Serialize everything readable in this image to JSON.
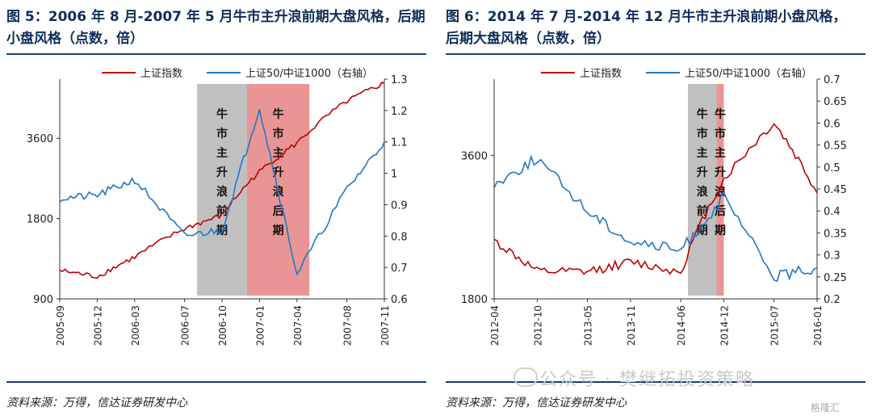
{
  "charts": [
    {
      "title": "图 5：2006 年 8 月-2007 年 5 月牛市主升浪前期大盘风格，后期\n小盘风格（点数，倍）",
      "source": "资料来源：万得，信达证券研发中心",
      "legend": [
        "上证指数",
        "上证50/中证1000（右轴）"
      ],
      "left_ticks": [
        "3600",
        "1800",
        "900"
      ],
      "right_ticks": [
        "1.3",
        "1.2",
        "1.1",
        "1",
        "0.9",
        "0.8",
        "0.7",
        "0.6"
      ],
      "x_ticks": [
        "2005-09",
        "2005-12",
        "2006-03",
        "2006-07",
        "2006-10",
        "2007-01",
        "2007-04",
        "2007-08",
        "2007-11"
      ],
      "band1_label": "牛市主升浪前期",
      "band2_label": "牛市主升浪后期"
    },
    {
      "title": "图 6：2014 年 7 月-2014 年 12 月牛市主升浪前期小盘风格，\n后期大盘风格（点数，倍）",
      "source": "资料来源：万得，信达证券研发中心",
      "legend": [
        "上证指数",
        "上证50/中证1000（右轴）"
      ],
      "left_ticks": [
        "3600",
        "1800"
      ],
      "right_ticks": [
        "0.7",
        "0.65",
        "0.6",
        "0.55",
        "0.5",
        "0.45",
        "0.4",
        "0.35",
        "0.3",
        "0.25",
        "0.2"
      ],
      "x_ticks": [
        "2012-04",
        "2012-10",
        "2013-05",
        "2013-11",
        "2014-06",
        "2014-12",
        "2015-07",
        "2016-01"
      ],
      "band1_label": "牛市主升浪前期",
      "band2_label": "牛市主升浪后期"
    }
  ],
  "watermark": "公众号 · 樊继拓投资策略",
  "corner_mark": "格隆汇",
  "colors": {
    "red": "#c00000",
    "blue": "#1f77c4",
    "gray": "#c0c0c0",
    "pink": "#e88a8a",
    "navy": "#0f2d5a"
  },
  "chart_data": [
    {
      "type": "line",
      "title": "图 5：2006 年 8 月-2007 年 5 月牛市主升浪前期大盘风格，后期小盘风格（点数，倍）",
      "x": [
        "2005-09",
        "2005-12",
        "2006-03",
        "2006-07",
        "2006-10",
        "2007-01",
        "2007-04",
        "2007-08",
        "2007-11"
      ],
      "series": [
        {
          "name": "上证指数",
          "axis": "left",
          "values": [
            1150,
            1090,
            1290,
            1650,
            1850,
            2700,
            3450,
            4950,
            5800
          ]
        },
        {
          "name": "上证50/中证1000（右轴）",
          "axis": "right",
          "values": [
            0.92,
            0.93,
            0.98,
            0.8,
            0.82,
            1.21,
            0.68,
            0.95,
            1.1
          ]
        }
      ],
      "ylim_left": [
        900,
        6000
      ],
      "ylim_right": [
        0.6,
        1.3
      ],
      "log_left": true,
      "shaded": [
        [
          "2006-08",
          "2006-12"
        ],
        [
          "2006-12",
          "2007-05"
        ]
      ]
    },
    {
      "type": "line",
      "title": "图 6：2014 年 7 月-2014 年 12 月牛市主升浪前期小盘风格，后期大盘风格（点数，倍）",
      "x": [
        "2012-04",
        "2012-10",
        "2013-05",
        "2013-11",
        "2014-06",
        "2014-12",
        "2015-07",
        "2016-01"
      ],
      "series": [
        {
          "name": "上证指数",
          "axis": "left",
          "values": [
            2380,
            2050,
            2050,
            2150,
            2050,
            3200,
            4200,
            3000
          ]
        },
        {
          "name": "上证50/中证1000（右轴）",
          "axis": "right",
          "values": [
            0.46,
            0.52,
            0.4,
            0.33,
            0.31,
            0.43,
            0.25,
            0.27
          ]
        }
      ],
      "ylim_left": [
        1800,
        5200
      ],
      "ylim_right": [
        0.2,
        0.7
      ],
      "log_left": true,
      "shaded": [
        [
          "2014-07",
          "2014-11"
        ],
        [
          "2014-11",
          "2014-12"
        ]
      ]
    }
  ]
}
